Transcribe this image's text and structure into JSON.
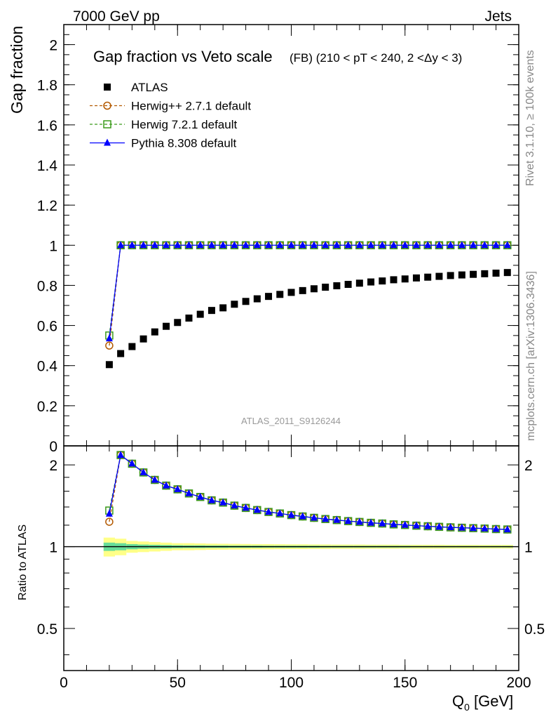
{
  "header": {
    "energy_label": "7000 GeV pp",
    "process_label": "Jets",
    "analysis_id": "ATLAS_2011_S9126244",
    "side_label_top": "Rivet 3.1.10, ≥ 100k events",
    "side_label_bottom": "mcplots.cern.ch [arXiv:1306.3436]"
  },
  "chart_data": [
    {
      "type": "scatter",
      "title": "Gap fraction vs Veto scale",
      "subtitle": "(FB) (210 < pT < 240, 2 <Δy < 3)",
      "ylabel": "Gap fraction",
      "xlabel": "Q0 [GeV]",
      "xlim": [
        0,
        200
      ],
      "ylim": [
        0,
        2.1
      ],
      "xticks": [
        0,
        50,
        100,
        150,
        200
      ],
      "yticks": [
        0,
        0.2,
        0.4,
        0.6,
        0.8,
        1,
        1.2,
        1.4,
        1.6,
        1.8,
        2
      ],
      "legend_position": "top-left",
      "x": [
        20,
        25,
        30,
        35,
        40,
        45,
        50,
        55,
        60,
        65,
        70,
        75,
        80,
        85,
        90,
        95,
        100,
        105,
        110,
        115,
        120,
        125,
        130,
        135,
        140,
        145,
        150,
        155,
        160,
        165,
        170,
        175,
        180,
        185,
        190,
        195
      ],
      "series": [
        {
          "name": "ATLAS",
          "color": "#000000",
          "marker": "square",
          "values": [
            0.405,
            0.46,
            0.495,
            0.533,
            0.568,
            0.596,
            0.615,
            0.637,
            0.656,
            0.675,
            0.688,
            0.706,
            0.72,
            0.733,
            0.745,
            0.755,
            0.765,
            0.774,
            0.783,
            0.791,
            0.798,
            0.805,
            0.811,
            0.817,
            0.822,
            0.828,
            0.832,
            0.837,
            0.841,
            0.845,
            0.849,
            0.852,
            0.855,
            0.858,
            0.861,
            0.864
          ]
        },
        {
          "name": "Herwig++ 2.7.1 default",
          "color": "#b35900",
          "marker": "open-circle",
          "dashed": true,
          "values": [
            0.5,
            1,
            1,
            1,
            1,
            1,
            1,
            1,
            1,
            1,
            1,
            1,
            1,
            1,
            1,
            1,
            1,
            1,
            1,
            1,
            1,
            1,
            1,
            1,
            1,
            1,
            1,
            1,
            1,
            1,
            1,
            1,
            1,
            1,
            1,
            1
          ]
        },
        {
          "name": "Herwig 7.2.1 default",
          "color": "#3a9a1a",
          "marker": "open-square",
          "dashed": true,
          "values": [
            0.55,
            1,
            1,
            1,
            1,
            1,
            1,
            1,
            1,
            1,
            1,
            1,
            1,
            1,
            1,
            1,
            1,
            1,
            1,
            1,
            1,
            1,
            1,
            1,
            1,
            1,
            1,
            1,
            1,
            1,
            1,
            1,
            1,
            1,
            1,
            1
          ]
        },
        {
          "name": "Pythia 8.308 default",
          "color": "#0000ff",
          "marker": "triangle",
          "values": [
            0.535,
            1,
            1,
            1,
            1,
            1,
            1,
            1,
            1,
            1,
            1,
            1,
            1,
            1,
            1,
            1,
            1,
            1,
            1,
            1,
            1,
            1,
            1,
            1,
            1,
            1,
            1,
            1,
            1,
            1,
            1,
            1,
            1,
            1,
            1,
            1
          ]
        }
      ]
    },
    {
      "type": "scatter",
      "ylabel": "Ratio to ATLAS",
      "xlabel": "Q0 [GeV]",
      "xlim": [
        0,
        200
      ],
      "ylim": [
        0.35,
        2.35
      ],
      "yscale": "log",
      "yticks": [
        0.5,
        1,
        2
      ],
      "x": [
        20,
        25,
        30,
        35,
        40,
        45,
        50,
        55,
        60,
        65,
        70,
        75,
        80,
        85,
        90,
        95,
        100,
        105,
        110,
        115,
        120,
        125,
        130,
        135,
        140,
        145,
        150,
        155,
        160,
        165,
        170,
        175,
        180,
        185,
        190,
        195
      ],
      "band_colors": [
        "#ffff88",
        "#66dd99"
      ],
      "band_outer": [
        0.08,
        0.07,
        0.05,
        0.045,
        0.04,
        0.035,
        0.03,
        0.03,
        0.028,
        0.026,
        0.025,
        0.024,
        0.023,
        0.022,
        0.022,
        0.021,
        0.02,
        0.02,
        0.019,
        0.019,
        0.018,
        0.018,
        0.018,
        0.017,
        0.017,
        0.017,
        0.016,
        0.016,
        0.016,
        0.016,
        0.015,
        0.015,
        0.015,
        0.015,
        0.015,
        0.015
      ],
      "band_inner": [
        0.035,
        0.03,
        0.022,
        0.018,
        0.016,
        0.014,
        0.012,
        0.011,
        0.011,
        0.01,
        0.01,
        0.009,
        0.009,
        0.009,
        0.008,
        0.008,
        0.008,
        0.008,
        0.008,
        0.007,
        0.007,
        0.007,
        0.007,
        0.007,
        0.007,
        0.007,
        0.007,
        0.006,
        0.006,
        0.006,
        0.006,
        0.006,
        0.006,
        0.006,
        0.006,
        0.006
      ],
      "series": [
        {
          "name": "Herwig++ 2.7.1 default",
          "color": "#b35900",
          "marker": "open-circle",
          "dashed": true,
          "values": [
            1.235,
            2.174,
            2.02,
            1.876,
            1.761,
            1.678,
            1.626,
            1.57,
            1.524,
            1.481,
            1.453,
            1.416,
            1.389,
            1.364,
            1.342,
            1.325,
            1.307,
            1.292,
            1.277,
            1.264,
            1.253,
            1.242,
            1.233,
            1.224,
            1.217,
            1.208,
            1.202,
            1.195,
            1.189,
            1.183,
            1.178,
            1.174,
            1.17,
            1.166,
            1.161,
            1.157
          ]
        },
        {
          "name": "Herwig 7.2.1 default",
          "color": "#3a9a1a",
          "marker": "open-square",
          "dashed": true,
          "values": [
            1.358,
            2.174,
            2.02,
            1.876,
            1.761,
            1.678,
            1.626,
            1.57,
            1.524,
            1.481,
            1.453,
            1.416,
            1.389,
            1.364,
            1.342,
            1.325,
            1.307,
            1.292,
            1.277,
            1.264,
            1.253,
            1.242,
            1.233,
            1.224,
            1.217,
            1.208,
            1.202,
            1.195,
            1.189,
            1.183,
            1.178,
            1.174,
            1.17,
            1.166,
            1.161,
            1.157
          ]
        },
        {
          "name": "Pythia 8.308 default",
          "color": "#0000ff",
          "marker": "triangle",
          "values": [
            1.321,
            2.174,
            2.02,
            1.876,
            1.761,
            1.678,
            1.626,
            1.57,
            1.524,
            1.481,
            1.453,
            1.416,
            1.389,
            1.364,
            1.342,
            1.325,
            1.307,
            1.292,
            1.277,
            1.264,
            1.253,
            1.242,
            1.233,
            1.224,
            1.217,
            1.208,
            1.202,
            1.195,
            1.189,
            1.183,
            1.178,
            1.174,
            1.17,
            1.166,
            1.161,
            1.157
          ]
        }
      ]
    }
  ]
}
